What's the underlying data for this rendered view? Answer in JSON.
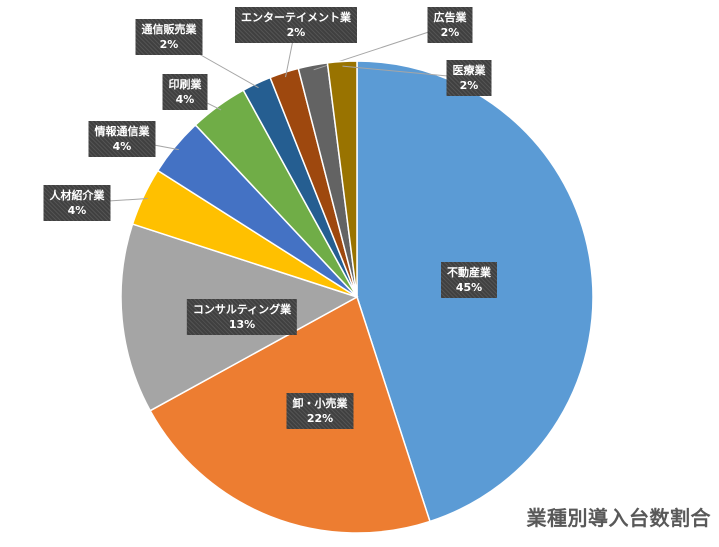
{
  "chart_data": {
    "type": "pie",
    "title": "業種別導入台数割合",
    "slices": [
      {
        "label": "不動産業",
        "value": 45,
        "display": "45%",
        "color": "#5B9BD5"
      },
      {
        "label": "卸・小売業",
        "value": 22,
        "display": "22%",
        "color": "#ED7D31"
      },
      {
        "label": "コンサルティング業",
        "value": 13,
        "display": "13%",
        "color": "#A5A5A5"
      },
      {
        "label": "人材紹介業",
        "value": 4,
        "display": "4%",
        "color": "#FFC000"
      },
      {
        "label": "情報通信業",
        "value": 4,
        "display": "4%",
        "color": "#4472C4"
      },
      {
        "label": "印刷業",
        "value": 4,
        "display": "4%",
        "color": "#70AD47"
      },
      {
        "label": "通信販売業",
        "value": 2,
        "display": "2%",
        "color": "#255E91"
      },
      {
        "label": "エンターテイメント業",
        "value": 2,
        "display": "2%",
        "color": "#9E480E"
      },
      {
        "label": "広告業",
        "value": 2,
        "display": "2%",
        "color": "#636363"
      },
      {
        "label": "医療業",
        "value": 2,
        "display": "2%",
        "color": "#997300"
      }
    ]
  }
}
